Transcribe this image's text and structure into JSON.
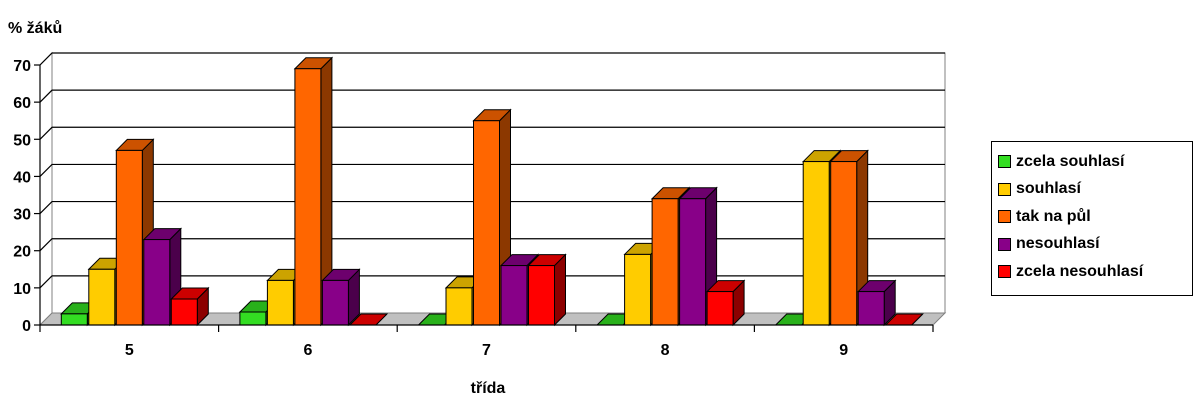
{
  "chart_data": {
    "type": "bar",
    "ylabel": "% žáků",
    "xlabel": "třída",
    "categories": [
      "5",
      "6",
      "7",
      "8",
      "9"
    ],
    "ylim": [
      0,
      70
    ],
    "yticks": [
      "0",
      "10",
      "20",
      "30",
      "40",
      "50",
      "60",
      "70"
    ],
    "grid": true,
    "legend_position": "right",
    "series": [
      {
        "name": "zcela souhlasí",
        "color": "#33dd22",
        "values": [
          3,
          3.5,
          0,
          0,
          0
        ]
      },
      {
        "name": "souhlasí",
        "color": "#ffcc00",
        "values": [
          15,
          12,
          10,
          19,
          44
        ]
      },
      {
        "name": "tak na půl",
        "color": "#ff6600",
        "values": [
          47,
          69,
          55,
          34,
          44
        ]
      },
      {
        "name": "nesouhlasí",
        "color": "#880088",
        "values": [
          23,
          12,
          16,
          34,
          9
        ]
      },
      {
        "name": "zcela nesouhlasí",
        "color": "#ff0000",
        "values": [
          7,
          0,
          16,
          9,
          0
        ]
      }
    ]
  }
}
